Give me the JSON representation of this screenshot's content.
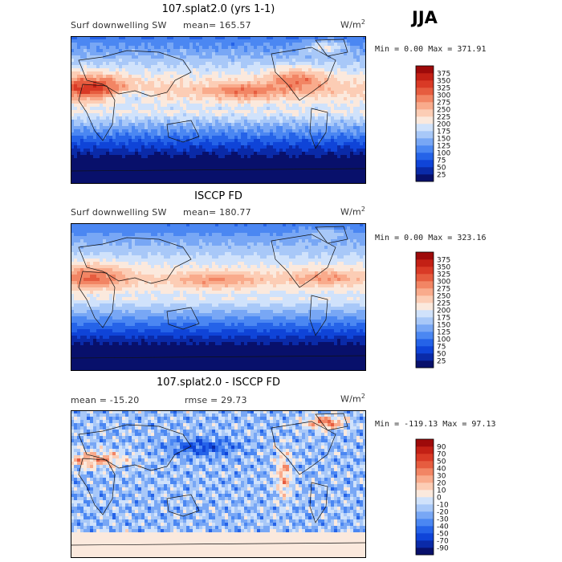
{
  "season": "JJA",
  "unit_base": "W/m",
  "unit_sup": "2",
  "panels": [
    {
      "title": "107.splat2.0 (yrs 1-1)",
      "field": "Surf downwelling SW",
      "stat1": "mean= 165.57",
      "stat2": "",
      "minmax": "Min =   0.00 Max = 371.91",
      "colorbar": {
        "colors": [
          "#08106b",
          "#0a2aa8",
          "#0f44d8",
          "#2563e8",
          "#4b87f2",
          "#78a7f5",
          "#a8c8f8",
          "#d0e2fb",
          "#fbe9dd",
          "#fccdb5",
          "#f9ab8c",
          "#f28564",
          "#e65c3f",
          "#d93a26",
          "#c32015",
          "#9e0a0a"
        ],
        "labels": [
          "25",
          "50",
          "75",
          "100",
          "125",
          "150",
          "175",
          "200",
          "225",
          "250",
          "275",
          "300",
          "325",
          "350",
          "375"
        ]
      }
    },
    {
      "title": "ISCCP FD",
      "field": "Surf downwelling SW",
      "stat1": "mean= 180.77",
      "stat2": "",
      "minmax": "Min =   0.00 Max = 323.16",
      "colorbar": {
        "colors": [
          "#08106b",
          "#0a2aa8",
          "#0f44d8",
          "#2563e8",
          "#4b87f2",
          "#78a7f5",
          "#a8c8f8",
          "#d0e2fb",
          "#fbe9dd",
          "#fccdb5",
          "#f9ab8c",
          "#f28564",
          "#e65c3f",
          "#d93a26",
          "#c32015",
          "#9e0a0a"
        ],
        "labels": [
          "25",
          "50",
          "75",
          "100",
          "125",
          "150",
          "175",
          "200",
          "225",
          "250",
          "275",
          "300",
          "325",
          "350",
          "375"
        ]
      }
    },
    {
      "title": "107.splat2.0 - ISCCP FD",
      "field": "",
      "stat1": "mean = -15.20",
      "stat2": "rmse =  29.73",
      "minmax": "Min = -119.13 Max =  97.13",
      "colorbar": {
        "colors": [
          "#08106b",
          "#0a2aa8",
          "#0f44d8",
          "#2563e8",
          "#4b87f2",
          "#78a7f5",
          "#a8c8f8",
          "#d0e2fb",
          "#fbe9dd",
          "#fccdb5",
          "#f9ab8c",
          "#f28564",
          "#e65c3f",
          "#d93a26",
          "#c32015",
          "#9e0a0a"
        ],
        "labels": [
          "-90",
          "-70",
          "-50",
          "-40",
          "-30",
          "-20",
          "-10",
          "0",
          "10",
          "20",
          "30",
          "40",
          "50",
          "70",
          "90"
        ]
      }
    }
  ],
  "chart_data": [
    {
      "type": "heatmap",
      "title": "107.splat2.0 (yrs 1-1)",
      "field": "Surf downwelling SW",
      "mean": 165.57,
      "min": 0.0,
      "max": 371.91,
      "contour_levels": [
        25,
        50,
        75,
        100,
        125,
        150,
        175,
        200,
        225,
        250,
        275,
        300,
        325,
        350,
        375
      ]
    },
    {
      "type": "heatmap",
      "title": "ISCCP FD",
      "field": "Surf downwelling SW",
      "mean": 180.77,
      "min": 0.0,
      "max": 323.16,
      "contour_levels": [
        25,
        50,
        75,
        100,
        125,
        150,
        175,
        200,
        225,
        250,
        275,
        300,
        325,
        350,
        375
      ]
    },
    {
      "type": "heatmap",
      "title": "107.splat2.0 - ISCCP FD",
      "mean": -15.2,
      "rmse": 29.73,
      "min": -119.13,
      "max": 97.13,
      "contour_levels": [
        -90,
        -70,
        -50,
        -40,
        -30,
        -20,
        -10,
        0,
        10,
        20,
        30,
        40,
        50,
        70,
        90
      ]
    }
  ]
}
